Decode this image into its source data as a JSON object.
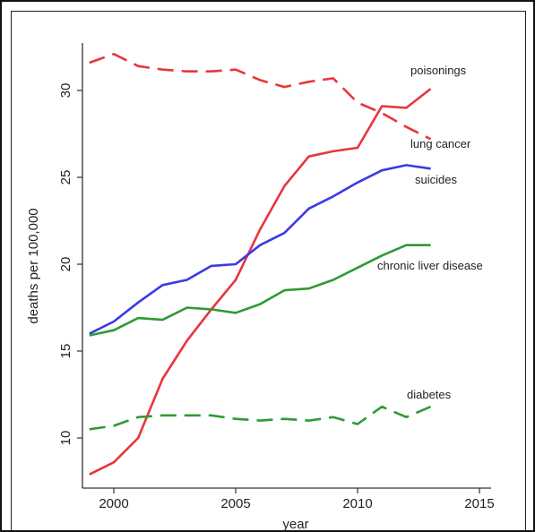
{
  "chart_data": {
    "type": "line",
    "xlabel": "year",
    "ylabel": "deaths per 100,000",
    "xlim": [
      1998.5,
      2015
    ],
    "ylim": [
      7.5,
      32.5
    ],
    "xticks": [
      2000,
      2005,
      2010,
      2015
    ],
    "yticks": [
      10,
      15,
      20,
      25,
      30
    ],
    "grid": false,
    "legend": "none (series labeled directly at line ends)",
    "x": [
      1999,
      2000,
      2001,
      2002,
      2003,
      2004,
      2005,
      2006,
      2007,
      2008,
      2009,
      2010,
      2011,
      2012,
      2013
    ],
    "series": [
      {
        "name": "poisonings",
        "color": "#e8363b",
        "dash": "solid",
        "values": [
          7.9,
          8.6,
          10.0,
          13.4,
          15.6,
          17.4,
          19.1,
          22.0,
          24.5,
          26.2,
          26.5,
          26.7,
          29.1,
          29.0,
          30.1
        ]
      },
      {
        "name": "lung cancer",
        "color": "#e8363b",
        "dash": "dashed",
        "values": [
          31.6,
          32.1,
          31.4,
          31.2,
          31.1,
          31.1,
          31.2,
          30.6,
          30.2,
          30.5,
          30.7,
          29.3,
          28.7,
          27.9,
          27.2
        ]
      },
      {
        "name": "suicides",
        "color": "#3a3ae6",
        "dash": "solid",
        "values": [
          16.0,
          16.7,
          17.8,
          18.8,
          19.1,
          19.9,
          20.0,
          21.1,
          21.8,
          23.2,
          23.9,
          24.7,
          25.4,
          25.7,
          25.5
        ]
      },
      {
        "name": "chronic liver disease",
        "color": "#2f9a34",
        "dash": "solid",
        "values": [
          15.9,
          16.2,
          16.9,
          16.8,
          17.5,
          17.4,
          17.2,
          17.7,
          18.5,
          18.6,
          19.1,
          19.8,
          20.5,
          21.1,
          21.1
        ]
      },
      {
        "name": "diabetes",
        "color": "#2f9a34",
        "dash": "dashed",
        "values": [
          10.5,
          10.7,
          11.2,
          11.3,
          11.3,
          11.3,
          11.1,
          11.0,
          11.1,
          11.0,
          11.2,
          10.8,
          11.8,
          11.2,
          11.8
        ]
      }
    ],
    "annotations": [
      {
        "text": "poisonings",
        "series": "poisonings"
      },
      {
        "text": "lung cancer",
        "series": "lung cancer"
      },
      {
        "text": "suicides",
        "series": "suicides"
      },
      {
        "text": "chronic liver disease",
        "series": "chronic liver disease"
      },
      {
        "text": "diabetes",
        "series": "diabetes"
      }
    ]
  }
}
